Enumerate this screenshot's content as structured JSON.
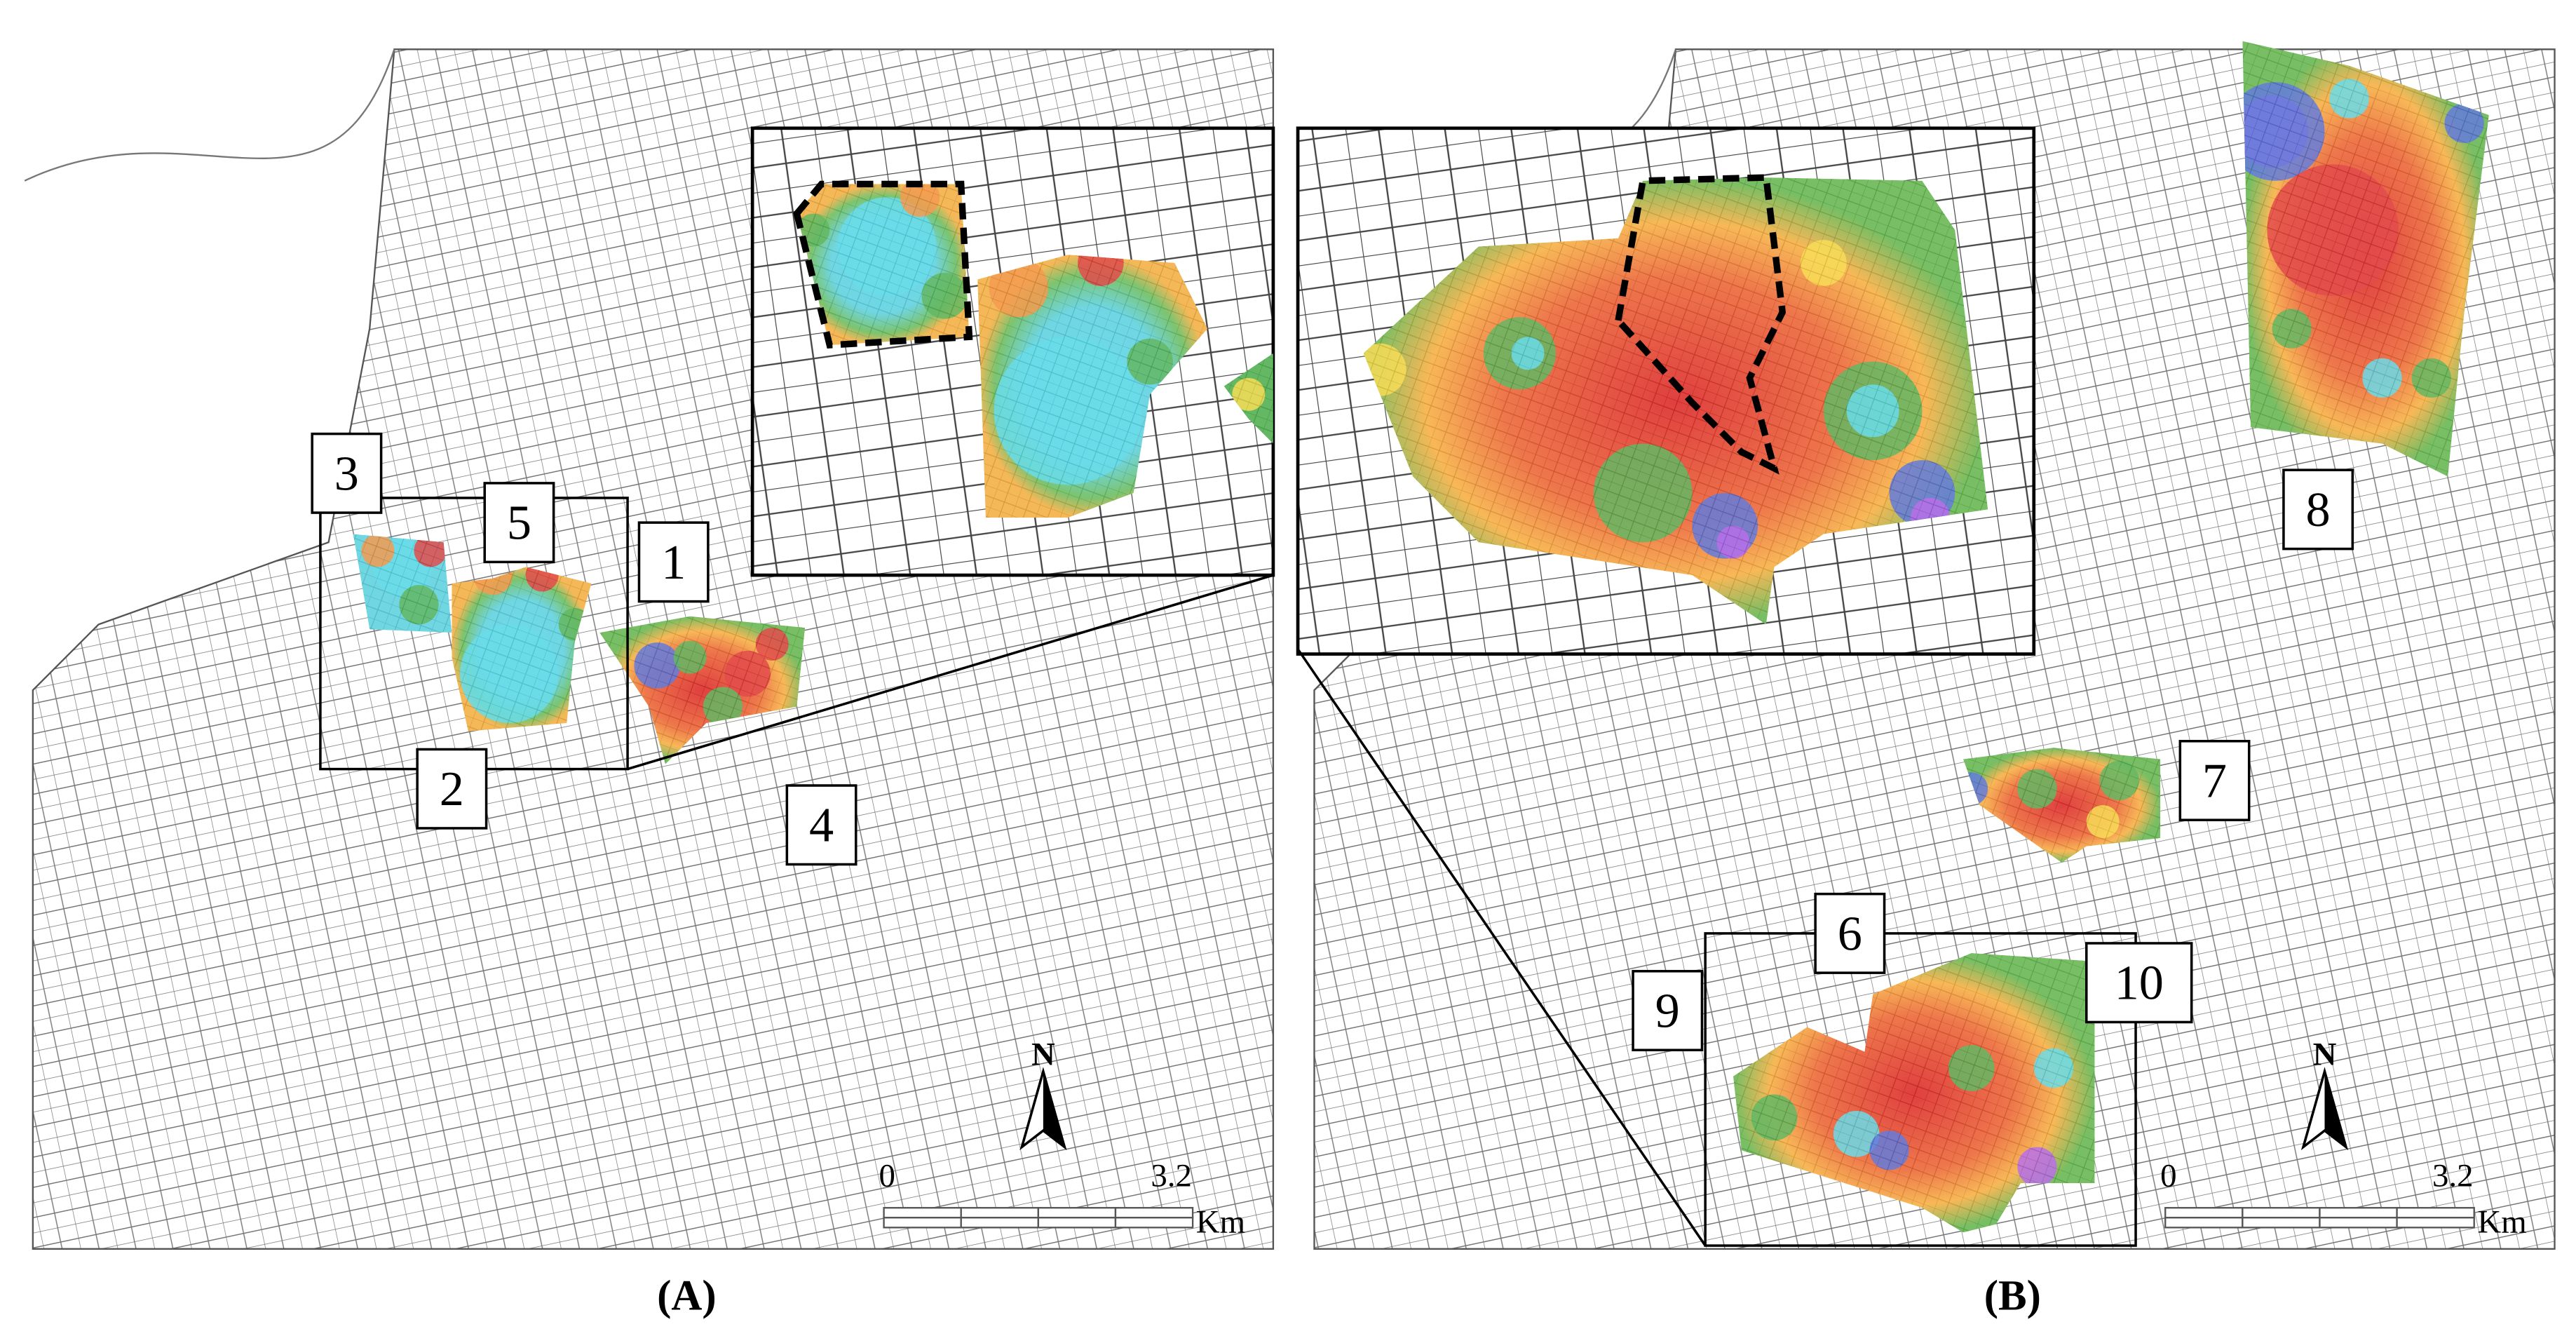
{
  "panels": [
    {
      "caption": "(A)",
      "labels": [
        "1",
        "2",
        "3",
        "4",
        "5"
      ],
      "north": "N",
      "scale": {
        "start": "0",
        "end": "3.2",
        "unit": "Km"
      }
    },
    {
      "caption": "(B)",
      "labels": [
        "6",
        "7",
        "8",
        "9",
        "10"
      ],
      "north": "N",
      "scale": {
        "start": "0",
        "end": "3.2",
        "unit": "Km"
      }
    }
  ]
}
